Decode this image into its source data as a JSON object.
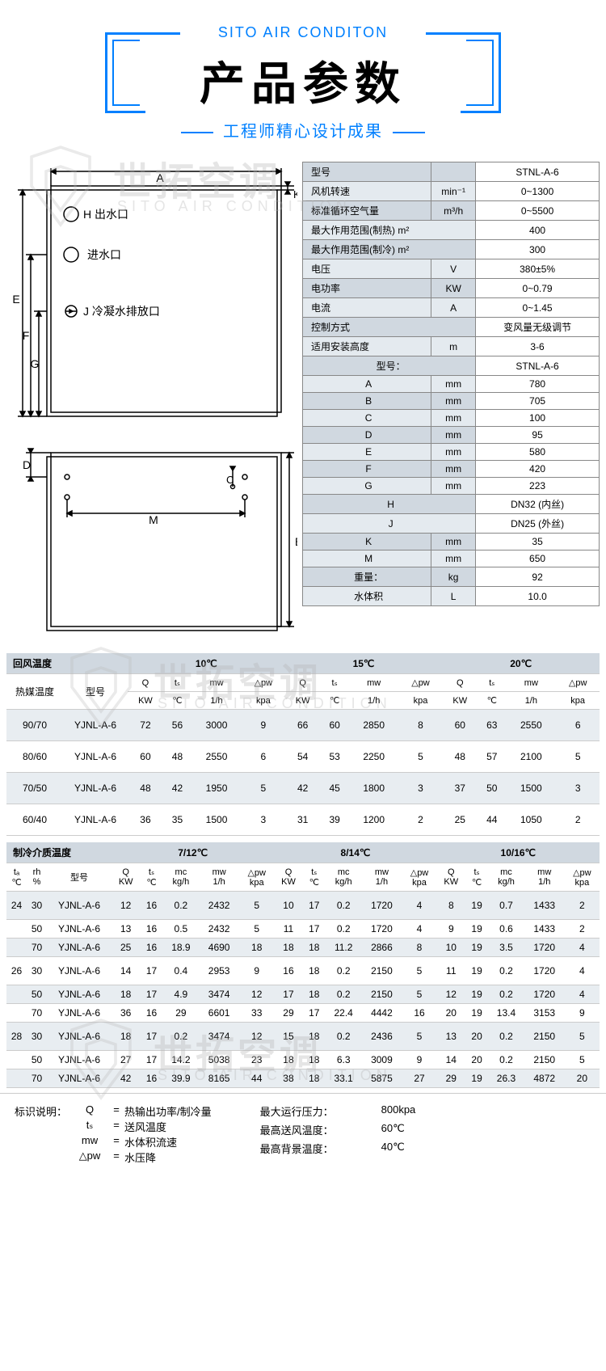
{
  "header": {
    "top_label": "SITO AIR CONDITON",
    "title": "产品参数",
    "subtitle": "工程师精心设计成果"
  },
  "watermarks": {
    "main": "世拓空调",
    "sub": "SITO AIR CONDITION"
  },
  "diagram": {
    "labels": {
      "A": "A",
      "K": "K",
      "H": "H 出水口",
      "intake": "进水口",
      "J": "J 冷凝水排放口",
      "E": "E",
      "F": "F",
      "G": "G",
      "D": "D",
      "M": "M",
      "C": "C",
      "B": "B"
    }
  },
  "spec": {
    "rows": [
      {
        "label": "型号",
        "unit": "",
        "val": "STNL-A-6",
        "alt": false
      },
      {
        "label": "风机转速",
        "unit": "min⁻¹",
        "val": "0~1300",
        "alt": true
      },
      {
        "label": "标准循环空气量",
        "unit": "m³/h",
        "val": "0~5500",
        "alt": false
      },
      {
        "label": "最大作用范围(制热) m²",
        "unit": "",
        "val": "400",
        "alt": true,
        "span": true
      },
      {
        "label": "最大作用范围(制冷) m²",
        "unit": "",
        "val": "300",
        "alt": false,
        "span": true
      },
      {
        "label": "电压",
        "unit": "V",
        "val": "380±5%",
        "alt": true
      },
      {
        "label": "电功率",
        "unit": "KW",
        "val": "0~0.79",
        "alt": false
      },
      {
        "label": "电流",
        "unit": "A",
        "val": "0~1.45",
        "alt": true
      },
      {
        "label": "控制方式",
        "unit": "",
        "val": "变风量无级调节",
        "alt": false,
        "span": true
      },
      {
        "label": "适用安装高度",
        "unit": "m",
        "val": "3-6",
        "alt": true
      },
      {
        "label": "型号：",
        "unit": "",
        "val": "STNL-A-6",
        "alt": false,
        "center": true,
        "span": true
      },
      {
        "label": "A",
        "unit": "mm",
        "val": "780",
        "alt": true,
        "center": true
      },
      {
        "label": "B",
        "unit": "mm",
        "val": "705",
        "alt": false,
        "center": true
      },
      {
        "label": "C",
        "unit": "mm",
        "val": "100",
        "alt": true,
        "center": true
      },
      {
        "label": "D",
        "unit": "mm",
        "val": "95",
        "alt": false,
        "center": true
      },
      {
        "label": "E",
        "unit": "mm",
        "val": "580",
        "alt": true,
        "center": true
      },
      {
        "label": "F",
        "unit": "mm",
        "val": "420",
        "alt": false,
        "center": true
      },
      {
        "label": "G",
        "unit": "mm",
        "val": "223",
        "alt": true,
        "center": true
      },
      {
        "label": "H",
        "unit": "",
        "val": "DN32 (内丝)",
        "alt": false,
        "center": true,
        "span": true
      },
      {
        "label": "J",
        "unit": "",
        "val": "DN25 (外丝)",
        "alt": true,
        "center": true,
        "span": true
      },
      {
        "label": "K",
        "unit": "mm",
        "val": "35",
        "alt": false,
        "center": true
      },
      {
        "label": "M",
        "unit": "mm",
        "val": "650",
        "alt": true,
        "center": true
      },
      {
        "label": "重量：",
        "unit": "kg",
        "val": "92",
        "alt": false,
        "center": true
      },
      {
        "label": "水体积",
        "unit": "L",
        "val": "10.0",
        "alt": true,
        "center": true
      }
    ]
  },
  "heat_table": {
    "section_hdr": "回风温度",
    "col1_hdr": "热媒温度",
    "col2_hdr": "型号",
    "temps": [
      "10℃",
      "15℃",
      "20℃"
    ],
    "sub_hdrs": [
      "Q",
      "tₛ",
      "mw",
      "△pw"
    ],
    "sub_units": [
      "KW",
      "℃",
      "1/h",
      "kpa"
    ],
    "rows": [
      {
        "m": "90/70",
        "model": "YJNL-A-6",
        "v": [
          [
            "72",
            "56",
            "3000",
            "9"
          ],
          [
            "66",
            "60",
            "2850",
            "8"
          ],
          [
            "60",
            "63",
            "2550",
            "6"
          ]
        ]
      },
      {
        "m": "80/60",
        "model": "YJNL-A-6",
        "v": [
          [
            "60",
            "48",
            "2550",
            "6"
          ],
          [
            "54",
            "53",
            "2250",
            "5"
          ],
          [
            "48",
            "57",
            "2100",
            "5"
          ]
        ]
      },
      {
        "m": "70/50",
        "model": "YJNL-A-6",
        "v": [
          [
            "48",
            "42",
            "1950",
            "5"
          ],
          [
            "42",
            "45",
            "1800",
            "3"
          ],
          [
            "37",
            "50",
            "1500",
            "3"
          ]
        ]
      },
      {
        "m": "60/40",
        "model": "YJNL-A-6",
        "v": [
          [
            "36",
            "35",
            "1500",
            "3"
          ],
          [
            "31",
            "39",
            "1200",
            "2"
          ],
          [
            "25",
            "44",
            "1050",
            "2"
          ]
        ]
      }
    ]
  },
  "cool_table": {
    "section_hdr": "制冷介质温度",
    "col1_hdr_a": "tₐ",
    "col1_hdr_a_unit": "℃",
    "col1_hdr_b": "rh",
    "col1_hdr_b_unit": "%",
    "model_hdr": "型号",
    "temps": [
      "7/12℃",
      "8/14℃",
      "10/16℃"
    ],
    "sub_hdrs": [
      "Q",
      "tₛ",
      "mc",
      "mw",
      "△pw"
    ],
    "sub_units": [
      "KW",
      "℃",
      "kg/h",
      "1/h",
      "kpa"
    ],
    "rows": [
      {
        "ta": "24",
        "rh": "30",
        "model": "YJNL-A-6",
        "v": [
          [
            "12",
            "16",
            "0.2",
            "2432",
            "5"
          ],
          [
            "10",
            "17",
            "0.2",
            "1720",
            "4"
          ],
          [
            "8",
            "19",
            "0.7",
            "1433",
            "2"
          ]
        ]
      },
      {
        "ta": "",
        "rh": "50",
        "model": "YJNL-A-6",
        "v": [
          [
            "13",
            "16",
            "0.5",
            "2432",
            "5"
          ],
          [
            "11",
            "17",
            "0.2",
            "1720",
            "4"
          ],
          [
            "9",
            "19",
            "0.6",
            "1433",
            "2"
          ]
        ]
      },
      {
        "ta": "",
        "rh": "70",
        "model": "YJNL-A-6",
        "v": [
          [
            "25",
            "16",
            "18.9",
            "4690",
            "18"
          ],
          [
            "18",
            "18",
            "11.2",
            "2866",
            "8"
          ],
          [
            "10",
            "19",
            "3.5",
            "1720",
            "4"
          ]
        ]
      },
      {
        "ta": "26",
        "rh": "30",
        "model": "YJNL-A-6",
        "v": [
          [
            "14",
            "17",
            "0.4",
            "2953",
            "9"
          ],
          [
            "16",
            "18",
            "0.2",
            "2150",
            "5"
          ],
          [
            "11",
            "19",
            "0.2",
            "1720",
            "4"
          ]
        ]
      },
      {
        "ta": "",
        "rh": "50",
        "model": "YJNL-A-6",
        "v": [
          [
            "18",
            "17",
            "4.9",
            "3474",
            "12"
          ],
          [
            "17",
            "18",
            "0.2",
            "2150",
            "5"
          ],
          [
            "12",
            "19",
            "0.2",
            "1720",
            "4"
          ]
        ]
      },
      {
        "ta": "",
        "rh": "70",
        "model": "YJNL-A-6",
        "v": [
          [
            "36",
            "16",
            "29",
            "6601",
            "33"
          ],
          [
            "29",
            "17",
            "22.4",
            "4442",
            "16"
          ],
          [
            "20",
            "19",
            "13.4",
            "3153",
            "9"
          ]
        ]
      },
      {
        "ta": "28",
        "rh": "30",
        "model": "YJNL-A-6",
        "v": [
          [
            "18",
            "17",
            "0.2",
            "3474",
            "12"
          ],
          [
            "15",
            "18",
            "0.2",
            "2436",
            "5"
          ],
          [
            "13",
            "20",
            "0.2",
            "2150",
            "5"
          ]
        ]
      },
      {
        "ta": "",
        "rh": "50",
        "model": "YJNL-A-6",
        "v": [
          [
            "27",
            "17",
            "14.2",
            "5038",
            "23"
          ],
          [
            "18",
            "18",
            "6.3",
            "3009",
            "9"
          ],
          [
            "14",
            "20",
            "0.2",
            "2150",
            "5"
          ]
        ]
      },
      {
        "ta": "",
        "rh": "70",
        "model": "YJNL-A-6",
        "v": [
          [
            "42",
            "16",
            "39.9",
            "8165",
            "44"
          ],
          [
            "38",
            "18",
            "33.1",
            "5875",
            "27"
          ],
          [
            "29",
            "19",
            "26.3",
            "4872",
            "20"
          ]
        ]
      }
    ]
  },
  "legend": {
    "title": "标识说明：",
    "left": [
      {
        "sym": "Q",
        "desc": "热输出功率/制冷量"
      },
      {
        "sym": "tₛ",
        "desc": "送风温度"
      },
      {
        "sym": "mw",
        "desc": "水体积流速"
      },
      {
        "sym": "△pw",
        "desc": "水压降"
      }
    ],
    "right": [
      {
        "lbl": "最大运行压力：",
        "val": "800kpa"
      },
      {
        "lbl": "最高送风温度：",
        "val": "60℃"
      },
      {
        "lbl": "最高背景温度：",
        "val": "40℃"
      }
    ]
  }
}
